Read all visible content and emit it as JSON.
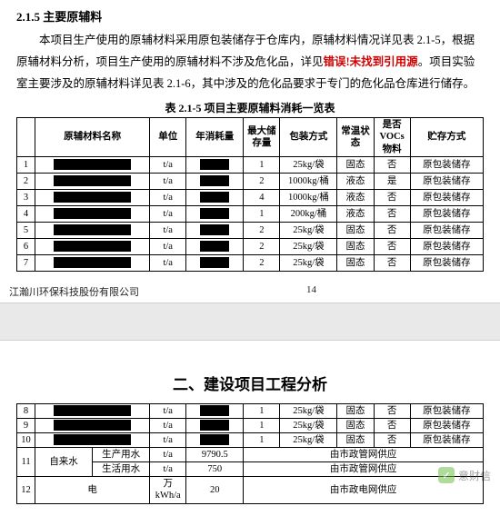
{
  "doc": {
    "heading": "2.1.5 主要原辅料",
    "para1a": "本项目生产使用的原辅材料采用原包装储存于仓库内，原辅材料情况详见表 2.1-5，根据原辅材料分析，项目生产使用的原辅材料不涉及危化品，详见",
    "err": "错误!未找到引用源",
    "para1b": "。项目实验室主要涉及的原辅材料详见表 2.1-6，其中涉及的危化品要求于专门的危化品仓库进行储存。",
    "caption": "表 2.1-5 项目主要原辅料消耗一览表",
    "footer_company": "江瀚川环保科技股份有限公司",
    "footer_page": "14",
    "section2": "二、建设项目工程分析",
    "watermark": "意财信"
  },
  "table": {
    "headers": [
      "",
      "原辅材料名称",
      "单位",
      "年消耗量",
      "最大储存量",
      "包装方式",
      "常温状态",
      "是否VOCs物料",
      "贮存方式"
    ],
    "rows": [
      {
        "i": "1",
        "unit": "t/a",
        "max": "1",
        "pack": "25kg/袋",
        "state": "固态",
        "voc": "否",
        "store": "原包装储存"
      },
      {
        "i": "2",
        "unit": "t/a",
        "max": "2",
        "pack": "1000kg/桶",
        "state": "液态",
        "voc": "是",
        "store": "原包装储存"
      },
      {
        "i": "3",
        "unit": "t/a",
        "max": "4",
        "pack": "1000kg/桶",
        "state": "液态",
        "voc": "否",
        "store": "原包装储存"
      },
      {
        "i": "4",
        "unit": "t/a",
        "max": "1",
        "pack": "200kg/桶",
        "state": "液态",
        "voc": "否",
        "store": "原包装储存"
      },
      {
        "i": "5",
        "unit": "t/a",
        "max": "2",
        "pack": "25kg/袋",
        "state": "固态",
        "voc": "否",
        "store": "原包装储存"
      },
      {
        "i": "6",
        "unit": "t/a",
        "max": "2",
        "pack": "25kg/袋",
        "state": "固态",
        "voc": "否",
        "store": "原包装储存"
      },
      {
        "i": "7",
        "unit": "t/a",
        "max": "2",
        "pack": "25kg/袋",
        "state": "固态",
        "voc": "否",
        "store": "原包装储存"
      }
    ]
  },
  "table2": {
    "rows": [
      {
        "i": "8",
        "unit": "t/a",
        "max": "1",
        "pack": "25kg/袋",
        "state": "固态",
        "voc": "否",
        "store": "原包装储存"
      },
      {
        "i": "9",
        "unit": "t/a",
        "max": "1",
        "pack": "25kg/袋",
        "state": "固态",
        "voc": "否",
        "store": "原包装储存"
      },
      {
        "i": "10",
        "unit": "t/a",
        "max": "1",
        "pack": "25kg/袋",
        "state": "固态",
        "voc": "否",
        "store": "原包装储存"
      }
    ],
    "water_label": "自来水",
    "water_prod_label": "生产用水",
    "water_life_label": "生活用水",
    "elec_label": "电",
    "row11": {
      "i": "11",
      "unit": "t/a",
      "cons": "9790.5",
      "supply": "由市政管网供应"
    },
    "row11b": {
      "unit": "t/a",
      "cons": "750",
      "supply": "由市政管网供应"
    },
    "row12": {
      "i": "12",
      "unit": "万 kWh/a",
      "cons": "20",
      "supply": "由市政电网供应"
    }
  }
}
